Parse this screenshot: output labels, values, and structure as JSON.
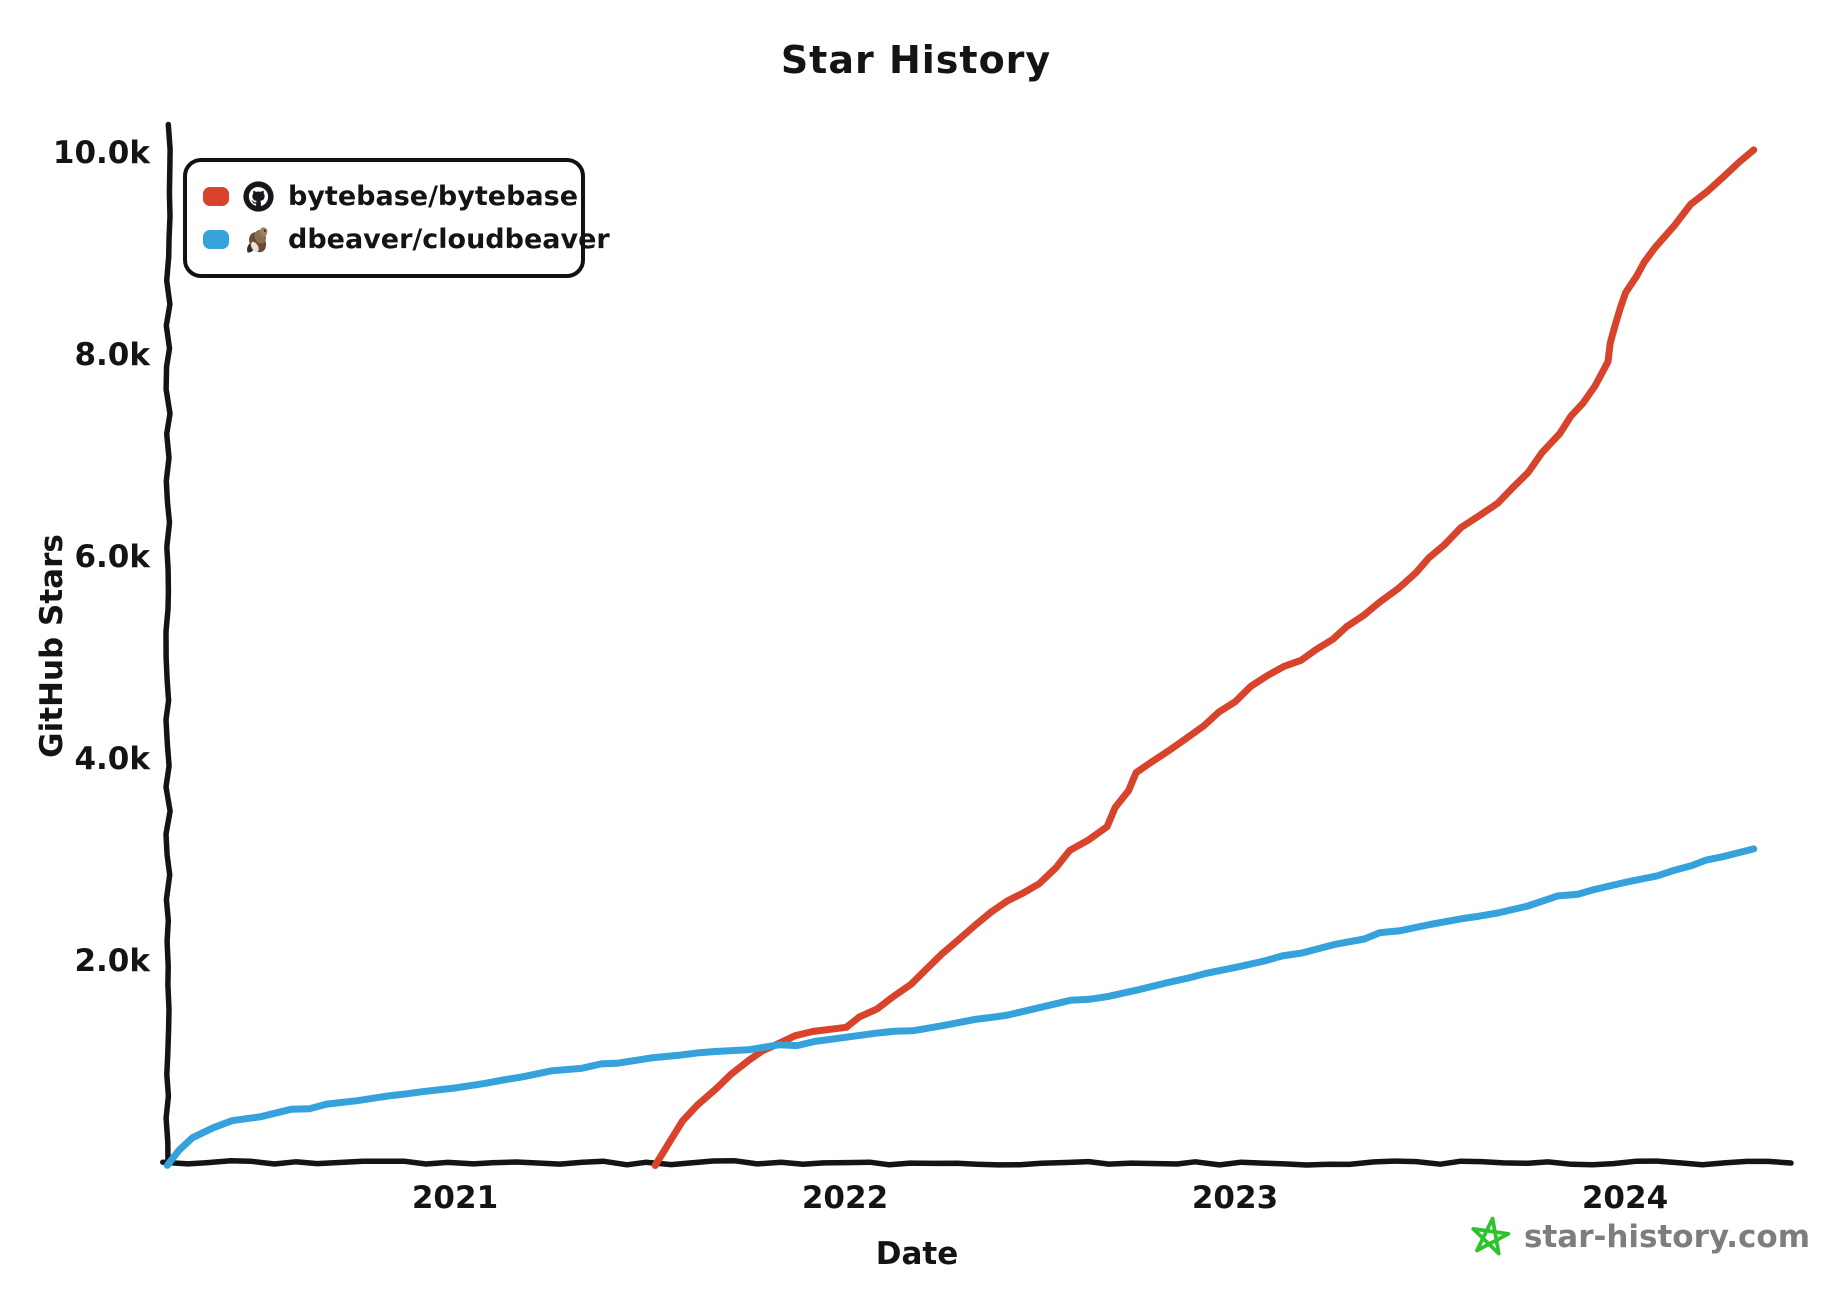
{
  "title": "Star History",
  "watermark": {
    "text": "star-history.com",
    "star_color": "#2bc42b",
    "text_color": "#7d7d7d"
  },
  "axis_color": "#141414",
  "chart_data": {
    "type": "line",
    "title": "Star History",
    "xlabel": "Date",
    "ylabel": "GitHub Stars",
    "grid": false,
    "legend_position": "top-left",
    "x_range_years": [
      2020.26,
      2024.42
    ],
    "y_range": [
      0,
      10300
    ],
    "x_ticks": [
      {
        "label": "2021",
        "year": 2021
      },
      {
        "label": "2022",
        "year": 2022
      },
      {
        "label": "2023",
        "year": 2023
      },
      {
        "label": "2024",
        "year": 2024
      }
    ],
    "y_ticks": [
      {
        "label": "2.0k",
        "value": 2000
      },
      {
        "label": "4.0k",
        "value": 4000
      },
      {
        "label": "6.0k",
        "value": 6000
      },
      {
        "label": "8.0k",
        "value": 8000
      },
      {
        "label": "10.0k",
        "value": 10000
      }
    ],
    "series": [
      {
        "name": "bytebase/bytebase",
        "color": "#d8432c",
        "icon": "bytebase-avatar",
        "points": [
          [
            2021.51,
            0
          ],
          [
            2021.55,
            250
          ],
          [
            2021.58,
            450
          ],
          [
            2021.62,
            600
          ],
          [
            2021.67,
            750
          ],
          [
            2021.71,
            900
          ],
          [
            2021.75,
            1050
          ],
          [
            2021.83,
            1220
          ],
          [
            2021.92,
            1310
          ],
          [
            2022.0,
            1370
          ],
          [
            2022.08,
            1550
          ],
          [
            2022.17,
            1800
          ],
          [
            2022.25,
            2100
          ],
          [
            2022.33,
            2380
          ],
          [
            2022.42,
            2600
          ],
          [
            2022.5,
            2800
          ],
          [
            2022.58,
            3100
          ],
          [
            2022.67,
            3350
          ],
          [
            2022.75,
            3900
          ],
          [
            2022.83,
            4100
          ],
          [
            2022.92,
            4350
          ],
          [
            2023.0,
            4600
          ],
          [
            2023.08,
            4850
          ],
          [
            2023.17,
            5000
          ],
          [
            2023.25,
            5200
          ],
          [
            2023.33,
            5450
          ],
          [
            2023.42,
            5700
          ],
          [
            2023.5,
            6000
          ],
          [
            2023.58,
            6300
          ],
          [
            2023.67,
            6550
          ],
          [
            2023.75,
            6850
          ],
          [
            2023.83,
            7250
          ],
          [
            2023.92,
            7700
          ],
          [
            2023.955,
            7950
          ],
          [
            2023.985,
            8500
          ],
          [
            2024.0,
            8650
          ],
          [
            2024.08,
            9100
          ],
          [
            2024.17,
            9500
          ],
          [
            2024.25,
            9800
          ],
          [
            2024.33,
            10050
          ]
        ]
      },
      {
        "name": "dbeaver/cloudbeaver",
        "color": "#35a2db",
        "icon": "beaver-avatar",
        "points": [
          [
            2020.264,
            0
          ],
          [
            2020.29,
            140
          ],
          [
            2020.33,
            280
          ],
          [
            2020.38,
            370
          ],
          [
            2020.43,
            430
          ],
          [
            2020.5,
            490
          ],
          [
            2020.58,
            540
          ],
          [
            2020.67,
            590
          ],
          [
            2020.75,
            640
          ],
          [
            2020.83,
            680
          ],
          [
            2020.92,
            720
          ],
          [
            2021.0,
            770
          ],
          [
            2021.08,
            810
          ],
          [
            2021.17,
            860
          ],
          [
            2021.25,
            920
          ],
          [
            2021.33,
            970
          ],
          [
            2021.42,
            1010
          ],
          [
            2021.5,
            1060
          ],
          [
            2021.58,
            1090
          ],
          [
            2021.67,
            1120
          ],
          [
            2021.75,
            1150
          ],
          [
            2021.83,
            1175
          ],
          [
            2021.92,
            1210
          ],
          [
            2022.0,
            1260
          ],
          [
            2022.08,
            1300
          ],
          [
            2022.17,
            1340
          ],
          [
            2022.25,
            1390
          ],
          [
            2022.33,
            1440
          ],
          [
            2022.42,
            1500
          ],
          [
            2022.5,
            1560
          ],
          [
            2022.58,
            1620
          ],
          [
            2022.67,
            1680
          ],
          [
            2022.75,
            1730
          ],
          [
            2022.83,
            1800
          ],
          [
            2022.92,
            1880
          ],
          [
            2023.0,
            1960
          ],
          [
            2023.08,
            2030
          ],
          [
            2023.17,
            2100
          ],
          [
            2023.25,
            2170
          ],
          [
            2023.33,
            2250
          ],
          [
            2023.42,
            2320
          ],
          [
            2023.5,
            2380
          ],
          [
            2023.58,
            2430
          ],
          [
            2023.67,
            2490
          ],
          [
            2023.75,
            2560
          ],
          [
            2023.83,
            2650
          ],
          [
            2023.92,
            2720
          ],
          [
            2024.0,
            2790
          ],
          [
            2024.08,
            2870
          ],
          [
            2024.17,
            2950
          ],
          [
            2024.25,
            3060
          ],
          [
            2024.33,
            3130
          ]
        ]
      }
    ]
  }
}
